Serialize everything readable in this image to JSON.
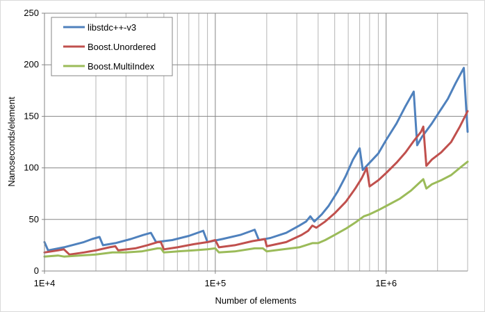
{
  "chart_data": {
    "type": "line",
    "title": "",
    "xlabel": "Number of elements",
    "ylabel": "Nanoseconds/element",
    "x_scale": "log",
    "xlim": [
      10000,
      3000000
    ],
    "ylim": [
      0,
      250
    ],
    "x_tick_labels": [
      {
        "value": 10000,
        "label": "1E+4"
      },
      {
        "value": 100000,
        "label": "1E+5"
      },
      {
        "value": 1000000,
        "label": "1E+6"
      }
    ],
    "y_ticks": [
      0,
      50,
      100,
      150,
      200,
      250
    ],
    "grid": "major and minor vertical, major horizontal",
    "legend_position": "top-left",
    "series": [
      {
        "name": "libstdc++-v3",
        "color": "#4F81BD",
        "points": [
          [
            10000,
            28
          ],
          [
            10500,
            20
          ],
          [
            13000,
            23
          ],
          [
            17000,
            28
          ],
          [
            19000,
            31
          ],
          [
            21000,
            33
          ],
          [
            22000,
            25
          ],
          [
            26000,
            27
          ],
          [
            32000,
            31
          ],
          [
            38000,
            35
          ],
          [
            42000,
            37
          ],
          [
            45000,
            28
          ],
          [
            56000,
            30
          ],
          [
            70000,
            34
          ],
          [
            85000,
            39
          ],
          [
            90000,
            28
          ],
          [
            110000,
            31
          ],
          [
            140000,
            35
          ],
          [
            170000,
            40
          ],
          [
            180000,
            30
          ],
          [
            210000,
            32
          ],
          [
            260000,
            37
          ],
          [
            310000,
            44
          ],
          [
            340000,
            48
          ],
          [
            360000,
            53
          ],
          [
            380000,
            48
          ],
          [
            420000,
            55
          ],
          [
            460000,
            63
          ],
          [
            520000,
            77
          ],
          [
            580000,
            92
          ],
          [
            640000,
            108
          ],
          [
            700000,
            119
          ],
          [
            730000,
            98
          ],
          [
            800000,
            105
          ],
          [
            900000,
            114
          ],
          [
            1000000,
            127
          ],
          [
            1150000,
            143
          ],
          [
            1300000,
            160
          ],
          [
            1450000,
            174
          ],
          [
            1520000,
            122
          ],
          [
            1620000,
            130
          ],
          [
            1850000,
            143
          ],
          [
            2100000,
            157
          ],
          [
            2300000,
            167
          ],
          [
            2550000,
            182
          ],
          [
            2850000,
            197
          ],
          [
            3000000,
            135
          ]
        ]
      },
      {
        "name": "Boost.Unordered",
        "color": "#C0504D",
        "points": [
          [
            10000,
            18
          ],
          [
            12000,
            20
          ],
          [
            13000,
            21
          ],
          [
            14000,
            16
          ],
          [
            17000,
            18
          ],
          [
            20000,
            20
          ],
          [
            24000,
            23
          ],
          [
            26000,
            24
          ],
          [
            27000,
            20
          ],
          [
            34000,
            22
          ],
          [
            40000,
            25
          ],
          [
            46000,
            28
          ],
          [
            48000,
            28
          ],
          [
            50000,
            21
          ],
          [
            60000,
            23
          ],
          [
            75000,
            26
          ],
          [
            90000,
            28
          ],
          [
            100000,
            30
          ],
          [
            105000,
            23
          ],
          [
            130000,
            25
          ],
          [
            165000,
            29
          ],
          [
            195000,
            31
          ],
          [
            200000,
            24
          ],
          [
            260000,
            28
          ],
          [
            320000,
            35
          ],
          [
            350000,
            39
          ],
          [
            370000,
            44
          ],
          [
            390000,
            42
          ],
          [
            440000,
            48
          ],
          [
            500000,
            56
          ],
          [
            580000,
            67
          ],
          [
            660000,
            80
          ],
          [
            720000,
            90
          ],
          [
            770000,
            100
          ],
          [
            800000,
            82
          ],
          [
            900000,
            88
          ],
          [
            1000000,
            95
          ],
          [
            1150000,
            105
          ],
          [
            1300000,
            115
          ],
          [
            1450000,
            126
          ],
          [
            1600000,
            135
          ],
          [
            1650000,
            140
          ],
          [
            1720000,
            102
          ],
          [
            1850000,
            108
          ],
          [
            2100000,
            115
          ],
          [
            2400000,
            125
          ],
          [
            2700000,
            140
          ],
          [
            3000000,
            155
          ]
        ]
      },
      {
        "name": "Boost.MultiIndex",
        "color": "#9BBB59",
        "points": [
          [
            10000,
            14
          ],
          [
            12000,
            15
          ],
          [
            13000,
            14
          ],
          [
            16000,
            15
          ],
          [
            20000,
            16
          ],
          [
            25000,
            18
          ],
          [
            30000,
            18
          ],
          [
            37000,
            19
          ],
          [
            46000,
            22
          ],
          [
            48000,
            22
          ],
          [
            50000,
            18
          ],
          [
            60000,
            19
          ],
          [
            75000,
            20
          ],
          [
            90000,
            21
          ],
          [
            100000,
            22
          ],
          [
            105000,
            18
          ],
          [
            130000,
            19
          ],
          [
            170000,
            22
          ],
          [
            190000,
            22
          ],
          [
            200000,
            19
          ],
          [
            250000,
            21
          ],
          [
            310000,
            23
          ],
          [
            370000,
            27
          ],
          [
            400000,
            27
          ],
          [
            440000,
            30
          ],
          [
            500000,
            35
          ],
          [
            580000,
            41
          ],
          [
            660000,
            47
          ],
          [
            740000,
            53
          ],
          [
            800000,
            55
          ],
          [
            900000,
            59
          ],
          [
            1000000,
            63
          ],
          [
            1200000,
            70
          ],
          [
            1400000,
            78
          ],
          [
            1600000,
            87
          ],
          [
            1650000,
            89
          ],
          [
            1720000,
            80
          ],
          [
            1850000,
            84
          ],
          [
            2100000,
            88
          ],
          [
            2400000,
            93
          ],
          [
            2700000,
            100
          ],
          [
            3000000,
            106
          ]
        ]
      }
    ]
  }
}
